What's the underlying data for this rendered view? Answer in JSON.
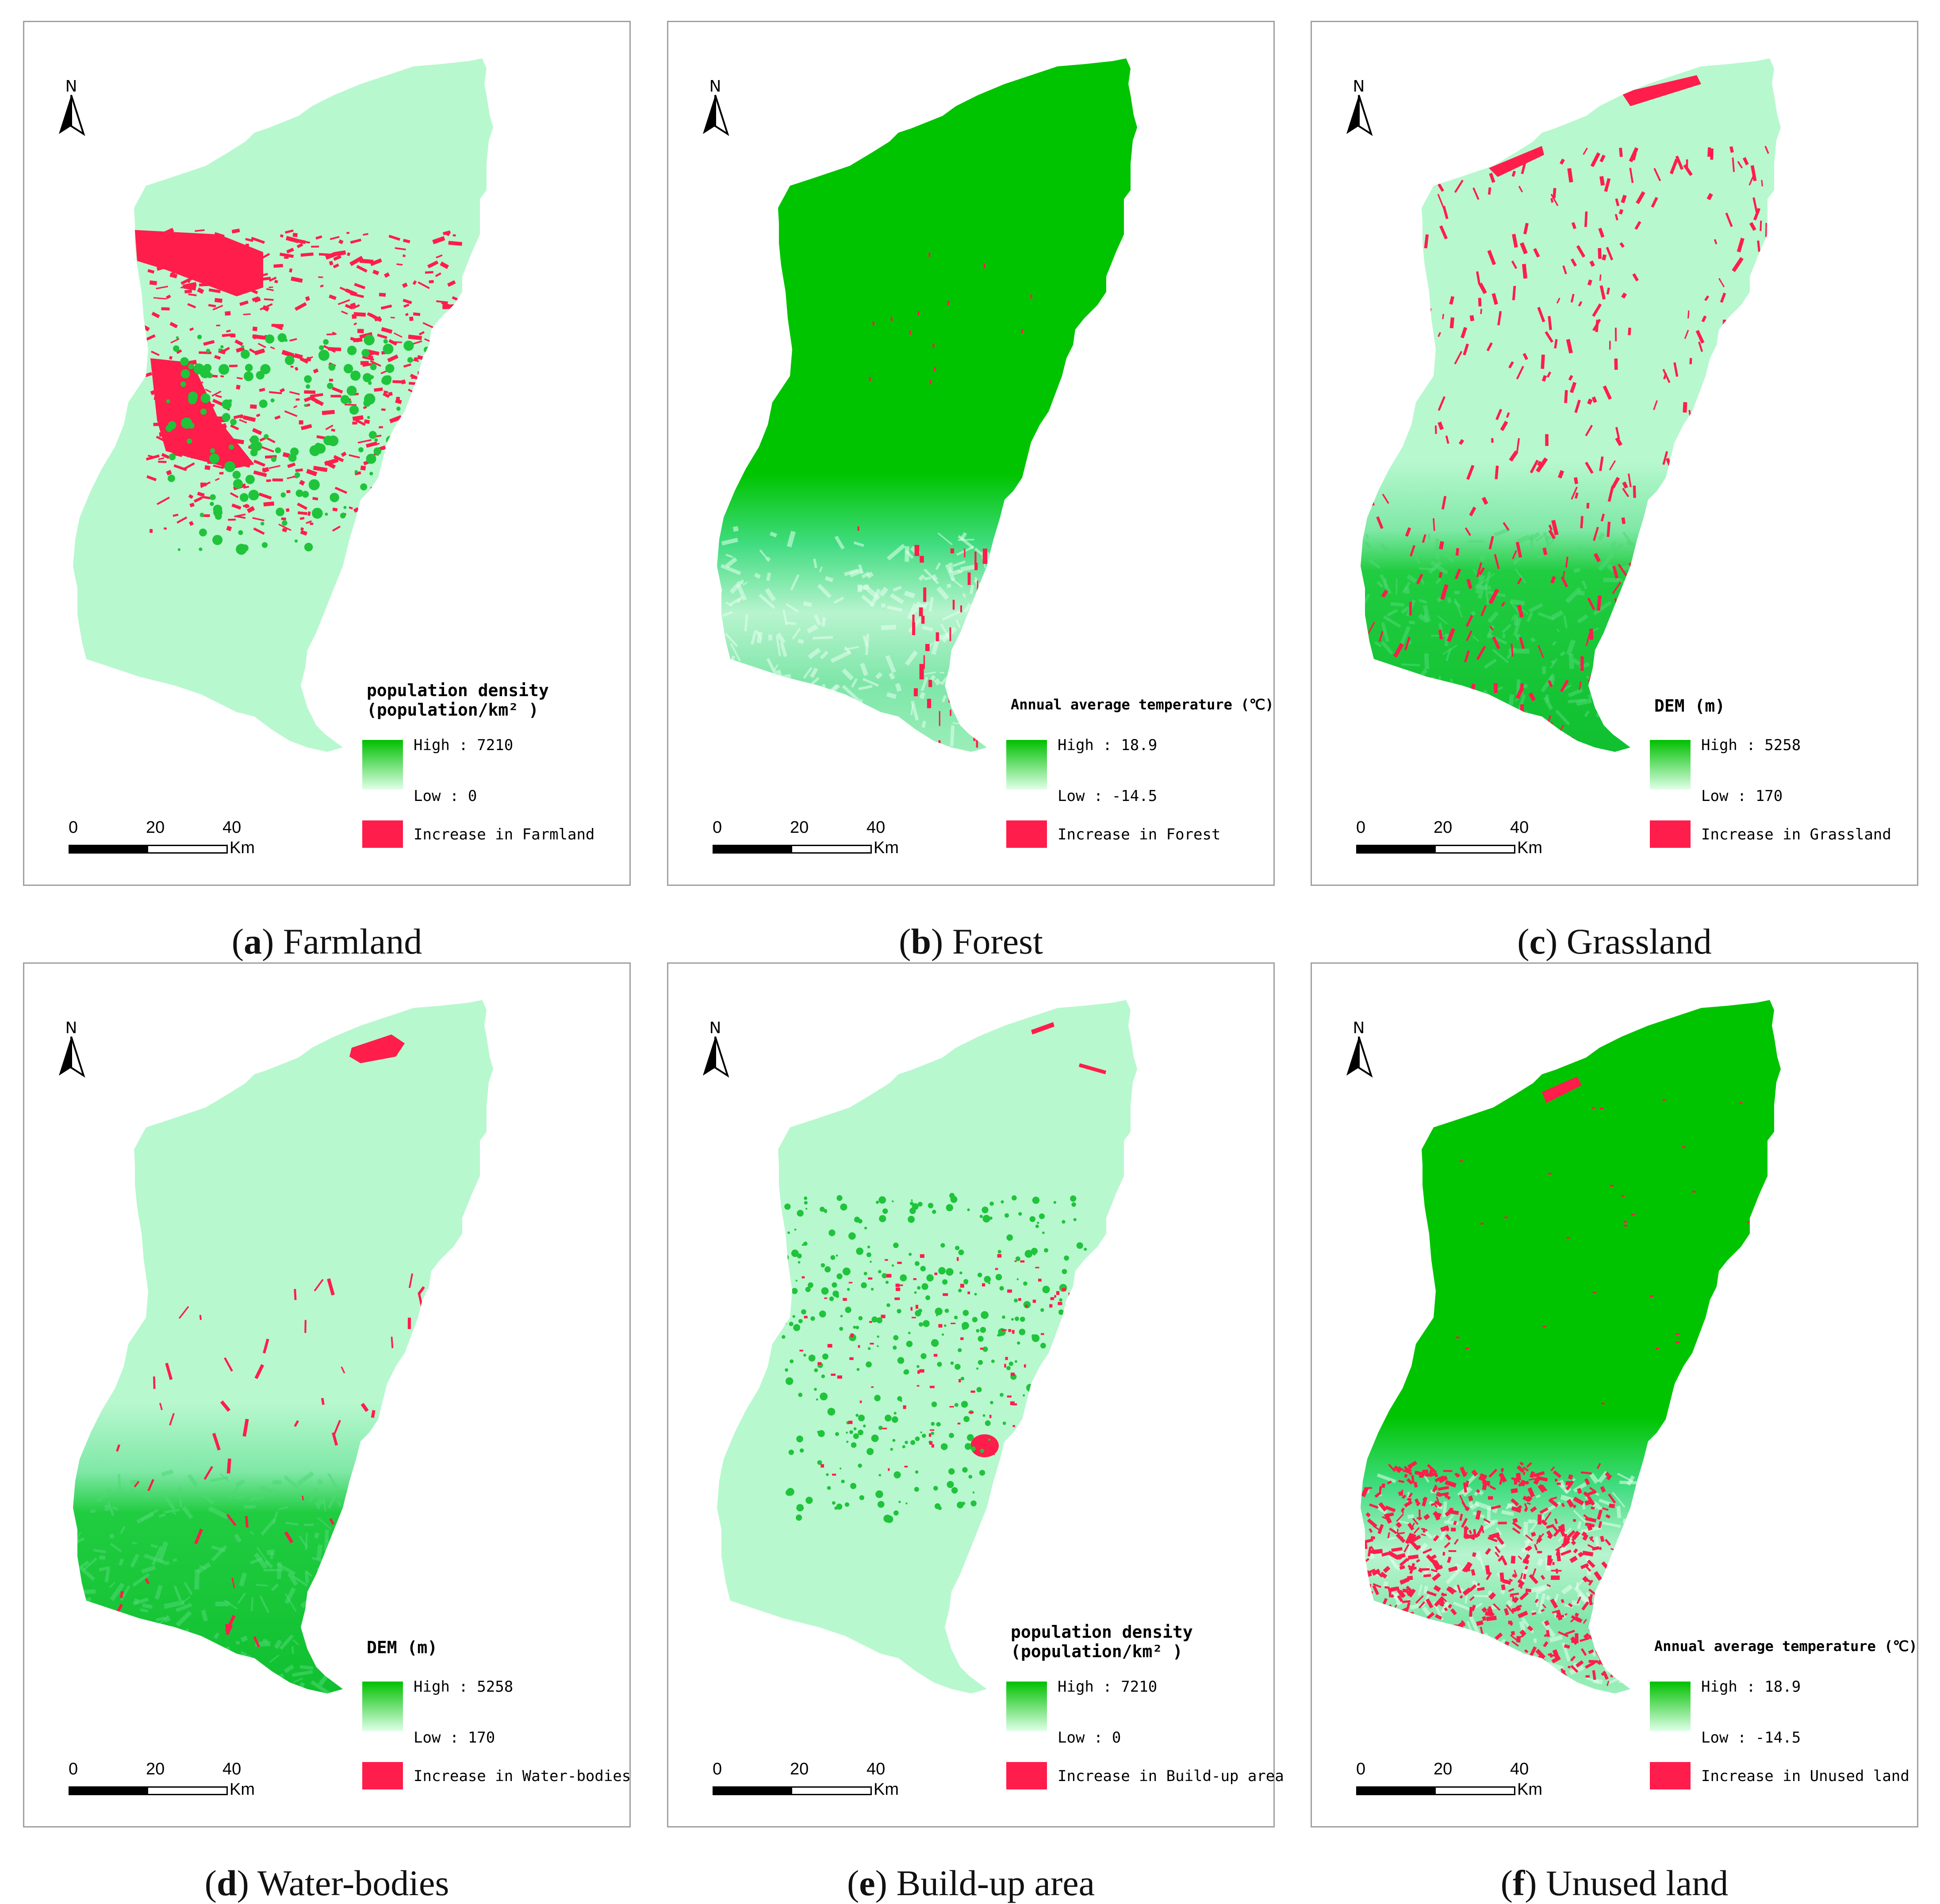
{
  "panels": [
    {
      "id": "a",
      "letter": "a",
      "caption": "Farmland",
      "background": "population",
      "legend_title": [
        "population density",
        "(population/km² )"
      ],
      "high_label": "High : 7210",
      "low_label": "Low : 0",
      "increase_label": "Increase in Farmland"
    },
    {
      "id": "b",
      "letter": "b",
      "caption": "Forest",
      "background": "temperature",
      "legend_title": [
        "Annual average temperature (℃)"
      ],
      "high_label": "High : 18.9",
      "low_label": "Low : -14.5",
      "increase_label": "Increase in Forest"
    },
    {
      "id": "c",
      "letter": "c",
      "caption": "Grassland",
      "background": "dem",
      "legend_title": [
        "DEM (m)"
      ],
      "high_label": "High : 5258",
      "low_label": "Low : 170",
      "increase_label": "Increase in Grassland"
    },
    {
      "id": "d",
      "letter": "d",
      "caption": "Water-bodies",
      "background": "dem",
      "legend_title": [
        "DEM (m)"
      ],
      "high_label": "High : 5258",
      "low_label": "Low : 170",
      "increase_label": "Increase in Water-bodies"
    },
    {
      "id": "e",
      "letter": "e",
      "caption": "Build-up area",
      "background": "population",
      "legend_title": [
        "population density",
        "(population/km² )"
      ],
      "high_label": "High : 7210",
      "low_label": "Low : 0",
      "increase_label": "Increase in Build-up area"
    },
    {
      "id": "f",
      "letter": "f",
      "caption": "Unused land",
      "background": "temperature",
      "legend_title": [
        "Annual average temperature (℃)"
      ],
      "high_label": "High : 18.9",
      "low_label": "Low : -14.5",
      "increase_label": "Increase in Unused land"
    }
  ],
  "north_label": "N",
  "scale": {
    "ticks": [
      "0",
      "20",
      "40"
    ],
    "unit": "Km"
  },
  "colors": {
    "high": "#00c000",
    "low": "#dfffe8",
    "increase": "#ff1d4b",
    "light_map": "#b8f8cf",
    "forest_map": "#00c400"
  }
}
